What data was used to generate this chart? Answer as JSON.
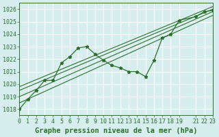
{
  "title": "Graphe pression niveau de la mer (hPa)",
  "bg_color": "#d6eeee",
  "grid_color": "#ffffff",
  "line_color": "#2d6e2d",
  "xlim": [
    0,
    23
  ],
  "ylim": [
    1017.5,
    1026.5
  ],
  "yticks": [
    1018,
    1019,
    1020,
    1021,
    1022,
    1023,
    1024,
    1025,
    1026
  ],
  "xticks": [
    0,
    1,
    2,
    3,
    4,
    5,
    6,
    7,
    8,
    9,
    10,
    11,
    12,
    13,
    14,
    15,
    16,
    17,
    18,
    19,
    21,
    22,
    23
  ],
  "main_line_x": [
    0,
    1,
    2,
    3,
    4,
    5,
    6,
    7,
    8,
    9,
    10,
    11,
    12,
    13,
    14,
    15,
    16,
    17,
    18,
    19,
    21,
    22,
    23
  ],
  "main_line_y": [
    1018.0,
    1018.8,
    1019.5,
    1020.3,
    1020.3,
    1021.7,
    1022.2,
    1022.9,
    1023.0,
    1022.4,
    1021.9,
    1021.5,
    1021.3,
    1021.0,
    1021.0,
    1020.6,
    1021.9,
    1023.7,
    1024.0,
    1025.1,
    1025.4,
    1025.8,
    1025.9
  ],
  "trend_lines": [
    {
      "x": [
        0,
        23
      ],
      "y": [
        1018.5,
        1025.5
      ]
    },
    {
      "x": [
        0,
        23
      ],
      "y": [
        1019.0,
        1025.8
      ]
    },
    {
      "x": [
        0,
        23
      ],
      "y": [
        1019.5,
        1026.0
      ]
    },
    {
      "x": [
        0,
        23
      ],
      "y": [
        1019.8,
        1026.2
      ]
    }
  ],
  "title_fontsize": 7.5,
  "tick_fontsize": 6
}
